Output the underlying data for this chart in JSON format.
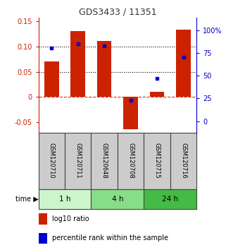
{
  "title": "GDS3433 / 11351",
  "samples": [
    "GSM120710",
    "GSM120711",
    "GSM120648",
    "GSM120708",
    "GSM120715",
    "GSM120716"
  ],
  "log10_ratio": [
    0.07,
    0.13,
    0.11,
    -0.063,
    0.01,
    0.133
  ],
  "percentile_rank": [
    80,
    85,
    83,
    23,
    47,
    70
  ],
  "ylim_left": [
    -0.07,
    0.157
  ],
  "ylim_right": [
    -12.25,
    113.75
  ],
  "yticks_left": [
    -0.05,
    0.0,
    0.05,
    0.1,
    0.15
  ],
  "yticks_right": [
    0,
    25,
    50,
    75,
    100
  ],
  "ytick_labels_left": [
    "-0.05",
    "0",
    "0.05",
    "0.10",
    "0.15"
  ],
  "ytick_labels_right": [
    "0",
    "25",
    "50",
    "75",
    "100%"
  ],
  "time_groups": [
    {
      "label": "1 h",
      "start": 0,
      "end": 2,
      "color": "#ccf5cc"
    },
    {
      "label": "4 h",
      "start": 2,
      "end": 4,
      "color": "#88dd88"
    },
    {
      "label": "24 h",
      "start": 4,
      "end": 6,
      "color": "#44bb44"
    }
  ],
  "bar_color": "#cc2200",
  "dot_color": "#0000cc",
  "bar_width": 0.55,
  "background_color": "#ffffff",
  "sample_box_color": "#cccccc",
  "sample_box_edge": "#444444",
  "zero_line_color": "#cc3300",
  "dotted_line_color": "#000000",
  "title_color": "#333333",
  "left_axis_color": "#cc2200",
  "right_axis_color": "#0000cc",
  "legend_items": [
    "log10 ratio",
    "percentile rank within the sample"
  ]
}
